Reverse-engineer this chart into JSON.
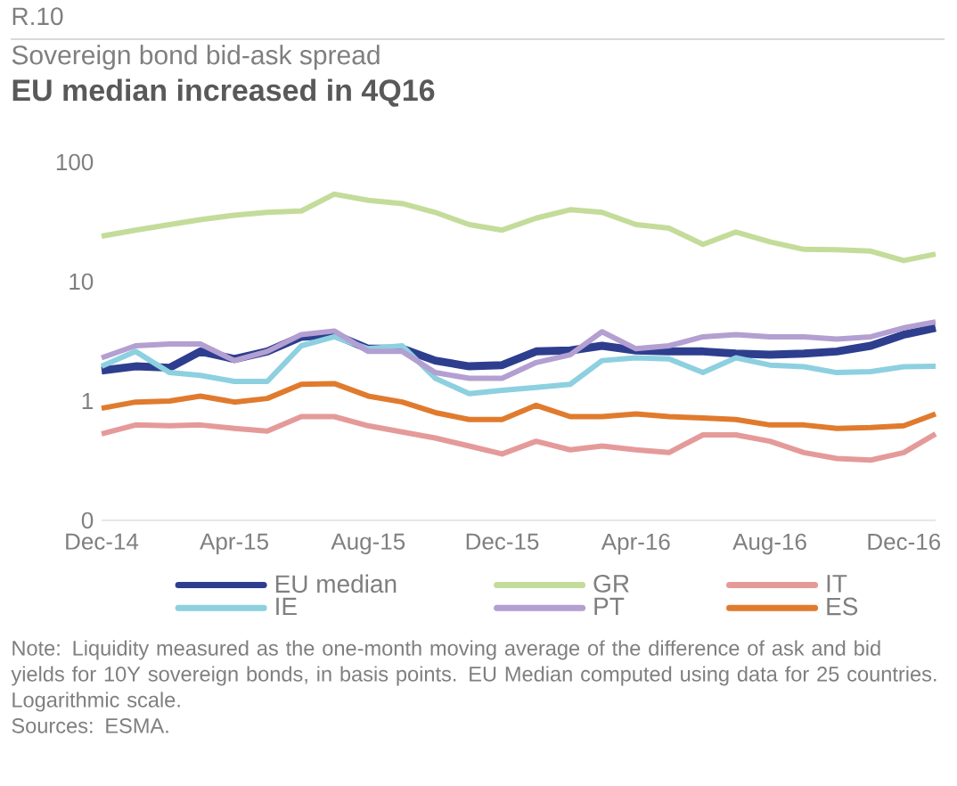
{
  "chart_data": {
    "type": "line",
    "title": "EU median increased in 4Q16",
    "subtitle": "Sovereign bond bid-ask spread",
    "annotations": [
      "R.10",
      "Note: Liquidity measured as the one-month moving average of the difference of ask and bid yields for 10Y sovereign bonds, in basis points. EU Median computed using data for 25 countries. Logarithmic scale.",
      "Sources: ESMA."
    ],
    "x": [
      "2014-12-01",
      "2015-01-01",
      "2015-02-01",
      "2015-03-01",
      "2015-04-01",
      "2015-05-01",
      "2015-06-01",
      "2015-07-01",
      "2015-08-01",
      "2015-09-01",
      "2015-10-01",
      "2015-11-01",
      "2015-12-01",
      "2016-01-01",
      "2016-02-01",
      "2016-03-01",
      "2016-04-01",
      "2016-05-01",
      "2016-06-01",
      "2016-07-01",
      "2016-08-01",
      "2016-09-01",
      "2016-10-01",
      "2016-11-01",
      "2016-12-01",
      "2016-12-30"
    ],
    "series": [
      {
        "name": "EU median",
        "color": "#2e3e8e",
        "values": [
          1.8,
          1.95,
          1.9,
          2.6,
          2.25,
          2.6,
          3.45,
          3.6,
          2.74,
          2.74,
          2.18,
          1.95,
          2.0,
          2.6,
          2.65,
          2.9,
          2.65,
          2.6,
          2.6,
          2.5,
          2.44,
          2.5,
          2.6,
          2.9,
          3.6,
          4.1
        ]
      },
      {
        "name": "GR",
        "color": "#c4dc9a",
        "values": [
          24,
          27,
          30,
          33,
          36,
          38,
          39,
          54,
          48,
          45,
          38,
          30,
          27,
          34,
          40,
          38,
          30,
          28,
          20.5,
          26,
          21.5,
          18.6,
          18.5,
          18,
          15,
          17
        ]
      },
      {
        "name": "IT",
        "color": "#e59a9a",
        "values": [
          0.53,
          0.63,
          0.62,
          0.63,
          0.59,
          0.56,
          0.74,
          0.74,
          0.62,
          0.55,
          0.49,
          0.42,
          0.36,
          0.46,
          0.39,
          0.42,
          0.39,
          0.37,
          0.52,
          0.52,
          0.46,
          0.37,
          0.33,
          0.32,
          0.37,
          0.53
        ]
      },
      {
        "name": "IE",
        "color": "#8dd0e0",
        "values": [
          1.95,
          2.6,
          1.73,
          1.64,
          1.46,
          1.46,
          2.9,
          3.45,
          2.74,
          2.9,
          1.55,
          1.15,
          1.23,
          1.3,
          1.38,
          2.18,
          2.3,
          2.25,
          1.73,
          2.3,
          2.0,
          1.94,
          1.73,
          1.76,
          1.94,
          1.95
        ]
      },
      {
        "name": "PT",
        "color": "#b39fd1",
        "values": [
          2.3,
          2.9,
          3.0,
          3.0,
          2.18,
          2.6,
          3.6,
          3.86,
          2.6,
          2.6,
          1.73,
          1.55,
          1.55,
          2.1,
          2.44,
          3.8,
          2.74,
          2.9,
          3.45,
          3.6,
          3.45,
          3.45,
          3.3,
          3.45,
          4.1,
          4.6
        ]
      },
      {
        "name": "ES",
        "color": "#e07b2e",
        "values": [
          0.87,
          0.98,
          1.0,
          1.1,
          0.98,
          1.05,
          1.38,
          1.4,
          1.1,
          0.98,
          0.8,
          0.7,
          0.7,
          0.92,
          0.74,
          0.74,
          0.78,
          0.74,
          0.72,
          0.7,
          0.63,
          0.63,
          0.59,
          0.6,
          0.62,
          0.78
        ]
      }
    ],
    "xlim": [
      "2014-12-01",
      "2016-12-30"
    ],
    "xticks": [
      {
        "value": "2014-12-01",
        "label": "Dec-14"
      },
      {
        "value": "2015-04-01",
        "label": "Apr-15"
      },
      {
        "value": "2015-08-01",
        "label": "Aug-15"
      },
      {
        "value": "2015-12-01",
        "label": "Dec-15"
      },
      {
        "value": "2016-04-01",
        "label": "Apr-16"
      },
      {
        "value": "2016-08-01",
        "label": "Aug-16"
      },
      {
        "value": "2016-12-01",
        "label": "Dec-16"
      }
    ],
    "ylim": [
      0.1,
      100
    ],
    "yticks": [
      {
        "value": 0.1,
        "label": "0"
      },
      1,
      10,
      100
    ],
    "log": "y",
    "grid": false,
    "legend": "bottom",
    "marker": "none",
    "line_style": "solid"
  }
}
